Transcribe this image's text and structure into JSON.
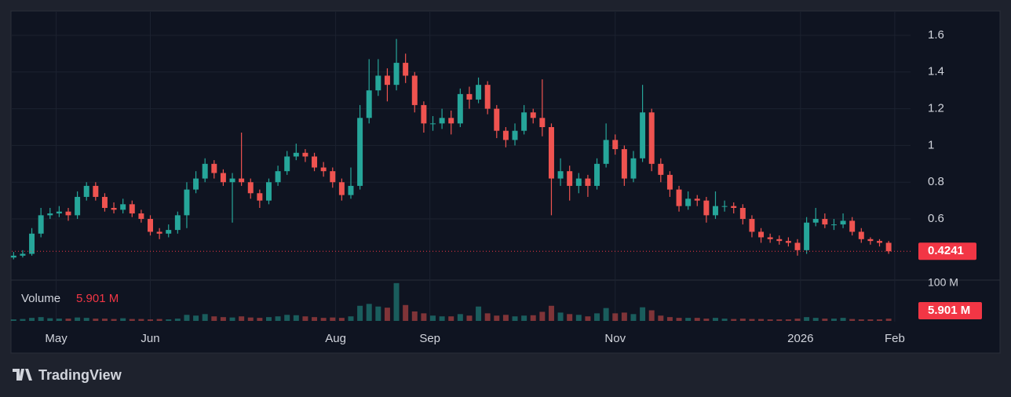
{
  "chart_data": {
    "type": "candlestick",
    "up_color": "#26a69a",
    "down_color": "#ef5350",
    "grid": true,
    "open": [
      0.39,
      0.4,
      0.41,
      0.52,
      0.62,
      0.63,
      0.64,
      0.62,
      0.72,
      0.78,
      0.72,
      0.66,
      0.65,
      0.68,
      0.63,
      0.6,
      0.53,
      0.52,
      0.54,
      0.62,
      0.76,
      0.82,
      0.9,
      0.85,
      0.8,
      0.82,
      0.8,
      0.74,
      0.7,
      0.8,
      0.86,
      0.94,
      0.96,
      0.94,
      0.88,
      0.86,
      0.8,
      0.73,
      0.78,
      1.15,
      1.3,
      1.38,
      1.33,
      1.45,
      1.38,
      1.22,
      1.12,
      1.12,
      1.15,
      1.12,
      1.28,
      1.25,
      1.33,
      1.2,
      1.08,
      1.03,
      1.08,
      1.18,
      1.15,
      1.1,
      0.82,
      0.86,
      0.78,
      0.82,
      0.78,
      0.9,
      1.03,
      0.98,
      0.82,
      0.93,
      1.18,
      0.9,
      0.84,
      0.76,
      0.67,
      0.71,
      0.7,
      0.62,
      0.67,
      0.67,
      0.66,
      0.6,
      0.53,
      0.5,
      0.49,
      0.48,
      0.47,
      0.43,
      0.58,
      0.6,
      0.57,
      0.57,
      0.59,
      0.53,
      0.49,
      0.48,
      0.47
    ],
    "high": [
      0.42,
      0.43,
      0.55,
      0.66,
      0.66,
      0.67,
      0.66,
      0.75,
      0.8,
      0.8,
      0.74,
      0.69,
      0.71,
      0.7,
      0.65,
      0.62,
      0.55,
      0.57,
      0.64,
      0.8,
      0.86,
      0.93,
      0.92,
      0.87,
      0.85,
      1.07,
      0.82,
      0.76,
      0.82,
      0.89,
      0.97,
      1.01,
      0.98,
      0.96,
      0.91,
      0.88,
      0.82,
      0.88,
      1.22,
      1.47,
      1.47,
      1.42,
      1.58,
      1.5,
      1.4,
      1.24,
      1.16,
      1.2,
      1.19,
      1.31,
      1.32,
      1.37,
      1.35,
      1.22,
      1.1,
      1.12,
      1.22,
      1.2,
      1.36,
      1.12,
      0.93,
      0.89,
      0.85,
      0.84,
      0.93,
      1.12,
      1.06,
      1.0,
      0.97,
      1.33,
      1.2,
      0.93,
      0.86,
      0.78,
      0.75,
      0.73,
      0.72,
      0.75,
      0.7,
      0.69,
      0.68,
      0.62,
      0.55,
      0.52,
      0.51,
      0.5,
      0.49,
      0.61,
      0.66,
      0.63,
      0.6,
      0.63,
      0.61,
      0.55,
      0.5,
      0.49,
      0.48
    ],
    "low": [
      0.38,
      0.39,
      0.4,
      0.5,
      0.6,
      0.61,
      0.59,
      0.6,
      0.7,
      0.7,
      0.64,
      0.63,
      0.63,
      0.61,
      0.58,
      0.51,
      0.49,
      0.5,
      0.52,
      0.55,
      0.74,
      0.8,
      0.82,
      0.78,
      0.58,
      0.78,
      0.71,
      0.66,
      0.68,
      0.78,
      0.84,
      0.92,
      0.91,
      0.86,
      0.83,
      0.77,
      0.7,
      0.71,
      0.76,
      1.12,
      1.27,
      1.24,
      1.3,
      1.34,
      1.18,
      1.07,
      1.08,
      1.09,
      1.06,
      1.1,
      1.2,
      1.23,
      1.17,
      1.04,
      0.99,
      1.0,
      1.06,
      1.12,
      1.05,
      0.62,
      0.78,
      0.7,
      0.74,
      0.72,
      0.76,
      0.88,
      0.95,
      0.78,
      0.8,
      0.91,
      0.86,
      0.8,
      0.72,
      0.64,
      0.65,
      0.67,
      0.58,
      0.6,
      0.64,
      0.63,
      0.57,
      0.5,
      0.47,
      0.47,
      0.46,
      0.45,
      0.4,
      0.41,
      0.56,
      0.55,
      0.54,
      0.55,
      0.51,
      0.47,
      0.46,
      0.45,
      0.41
    ],
    "close": [
      0.4,
      0.41,
      0.52,
      0.62,
      0.63,
      0.64,
      0.62,
      0.72,
      0.78,
      0.72,
      0.66,
      0.65,
      0.68,
      0.63,
      0.6,
      0.53,
      0.52,
      0.54,
      0.62,
      0.76,
      0.82,
      0.9,
      0.85,
      0.8,
      0.82,
      0.8,
      0.74,
      0.7,
      0.8,
      0.86,
      0.94,
      0.96,
      0.94,
      0.88,
      0.86,
      0.8,
      0.73,
      0.78,
      1.15,
      1.3,
      1.38,
      1.33,
      1.45,
      1.38,
      1.22,
      1.12,
      1.12,
      1.15,
      1.12,
      1.28,
      1.25,
      1.33,
      1.2,
      1.08,
      1.03,
      1.08,
      1.18,
      1.15,
      1.1,
      0.82,
      0.86,
      0.78,
      0.82,
      0.78,
      0.9,
      1.03,
      0.98,
      0.82,
      0.93,
      1.18,
      0.9,
      0.84,
      0.76,
      0.67,
      0.71,
      0.7,
      0.62,
      0.67,
      0.67,
      0.66,
      0.6,
      0.53,
      0.5,
      0.49,
      0.48,
      0.47,
      0.43,
      0.58,
      0.6,
      0.57,
      0.57,
      0.59,
      0.53,
      0.49,
      0.48,
      0.47,
      0.4241
    ],
    "ylim": [
      0.267,
      1.728
    ],
    "yticks": [
      0.6,
      0.8,
      1,
      1.2,
      1.4,
      1.6
    ],
    "xlim": [
      -0.2,
      98.4
    ],
    "xticks": [
      {
        "value": 4.67,
        "label": "May"
      },
      {
        "value": 15,
        "label": "Jun"
      },
      {
        "value": 35.33,
        "label": "Aug"
      },
      {
        "value": 45.67,
        "label": "Sep"
      },
      {
        "value": 66,
        "label": "Nov"
      },
      {
        "value": 86.33,
        "label": "2026"
      },
      {
        "value": 96.67,
        "label": "Feb"
      }
    ],
    "volume": {
      "name": "Volume",
      "values": [
        4,
        5,
        8,
        10,
        7,
        6,
        6,
        9,
        8,
        6,
        6,
        5,
        7,
        5,
        5,
        4,
        5,
        4,
        6,
        16,
        14,
        18,
        12,
        10,
        9,
        12,
        9,
        8,
        10,
        12,
        16,
        15,
        12,
        10,
        8,
        9,
        8,
        12,
        40,
        45,
        38,
        35,
        100,
        42,
        25,
        20,
        14,
        12,
        12,
        18,
        14,
        38,
        20,
        14,
        16,
        12,
        14,
        15,
        24,
        40,
        22,
        18,
        16,
        12,
        20,
        34,
        20,
        22,
        18,
        36,
        28,
        14,
        10,
        8,
        8,
        8,
        6,
        8,
        6,
        5,
        6,
        5,
        5,
        4,
        4,
        4,
        6,
        10,
        8,
        6,
        6,
        8,
        5,
        4,
        4,
        4,
        5.901
      ],
      "value_labels": [
        null,
        null,
        null,
        null,
        null,
        null,
        null,
        null,
        null,
        null,
        null,
        null,
        null,
        null,
        null,
        null,
        null,
        null,
        null,
        null,
        null,
        null,
        null,
        null,
        null,
        null,
        null,
        null,
        null,
        null,
        null,
        null,
        null,
        null,
        null,
        null,
        null,
        null,
        null,
        null,
        null,
        null,
        null,
        null,
        null,
        null,
        null,
        null,
        null,
        null,
        null,
        null,
        null,
        null,
        null,
        null,
        null,
        null,
        null,
        null,
        null,
        null,
        null,
        null,
        null,
        null,
        null,
        null,
        null,
        null,
        null,
        null,
        null,
        null,
        null,
        null,
        null,
        null,
        null,
        null,
        null,
        null,
        null,
        null,
        null,
        null,
        null,
        null,
        null,
        null,
        null,
        null,
        null,
        null,
        null,
        null,
        "5.901 M"
      ],
      "ylim": [
        0,
        108
      ],
      "yticks": [
        {
          "value": 100,
          "label": "100 M"
        }
      ]
    }
  },
  "brand": "TradingView"
}
